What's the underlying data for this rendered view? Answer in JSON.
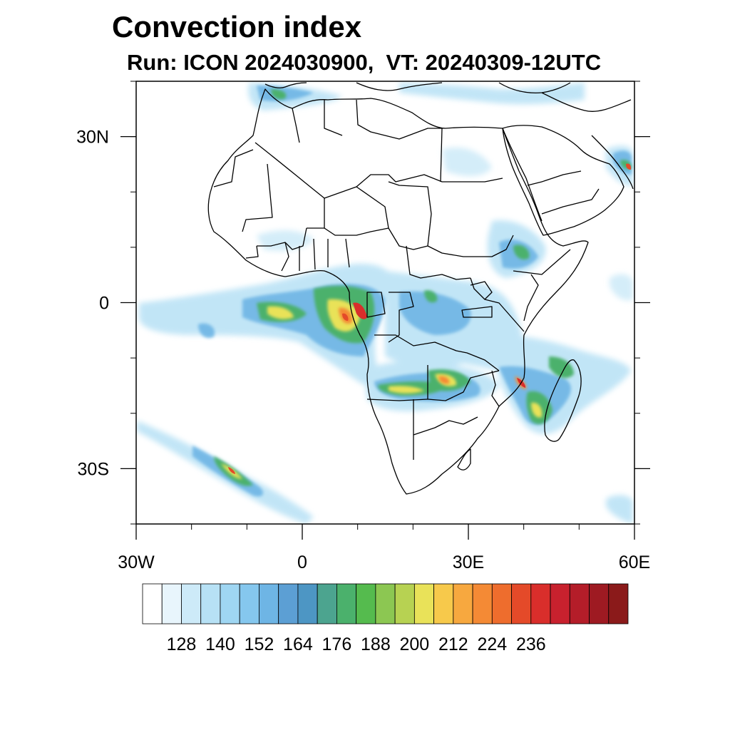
{
  "title": "Convection index",
  "subtitle": "Run: ICON 2024030900,  VT: 20240309-12UTC",
  "map": {
    "projection": "equirectangular",
    "lon_range": [
      -30,
      60
    ],
    "lat_range": [
      -40,
      40
    ],
    "lon_ticks": [
      {
        "value": -30,
        "label": "30W"
      },
      {
        "value": 0,
        "label": "0"
      },
      {
        "value": 30,
        "label": "30E"
      },
      {
        "value": 60,
        "label": "60E"
      }
    ],
    "lat_ticks": [
      {
        "value": 30,
        "label": "30N"
      },
      {
        "value": 0,
        "label": "0"
      },
      {
        "value": -30,
        "label": "30S"
      }
    ],
    "borders_color": "#000000"
  },
  "colorbar": {
    "labels": [
      "128",
      "140",
      "152",
      "164",
      "176",
      "188",
      "200",
      "212",
      "224",
      "236"
    ],
    "colors": [
      "#ffffff",
      "#e8f5fc",
      "#cdeaf8",
      "#b7e1f5",
      "#9fd6f2",
      "#85c7ee",
      "#6eb5e5",
      "#5c9fd4",
      "#4d96c4",
      "#4ca48f",
      "#4bb16c",
      "#55bb4e",
      "#8cc752",
      "#b7d252",
      "#e9e259",
      "#f7c94b",
      "#f7a83f",
      "#f48a35",
      "#ee6d2d",
      "#e44a29",
      "#d92e2b",
      "#c8212e",
      "#b41d29",
      "#9e1a22",
      "#8b1a1a"
    ]
  },
  "convection_areas": [
    {
      "name": "gulf-of-guinea-band",
      "level": 0.55
    },
    {
      "name": "congo-basin",
      "level": 0.8
    },
    {
      "name": "zambia-angola",
      "level": 0.7
    },
    {
      "name": "mozambique-madagascar",
      "level": 0.75
    },
    {
      "name": "south-atlantic-band",
      "level": 0.6
    },
    {
      "name": "ethiopia-highlands",
      "level": 0.5
    },
    {
      "name": "persian-gulf",
      "level": 0.7
    }
  ]
}
